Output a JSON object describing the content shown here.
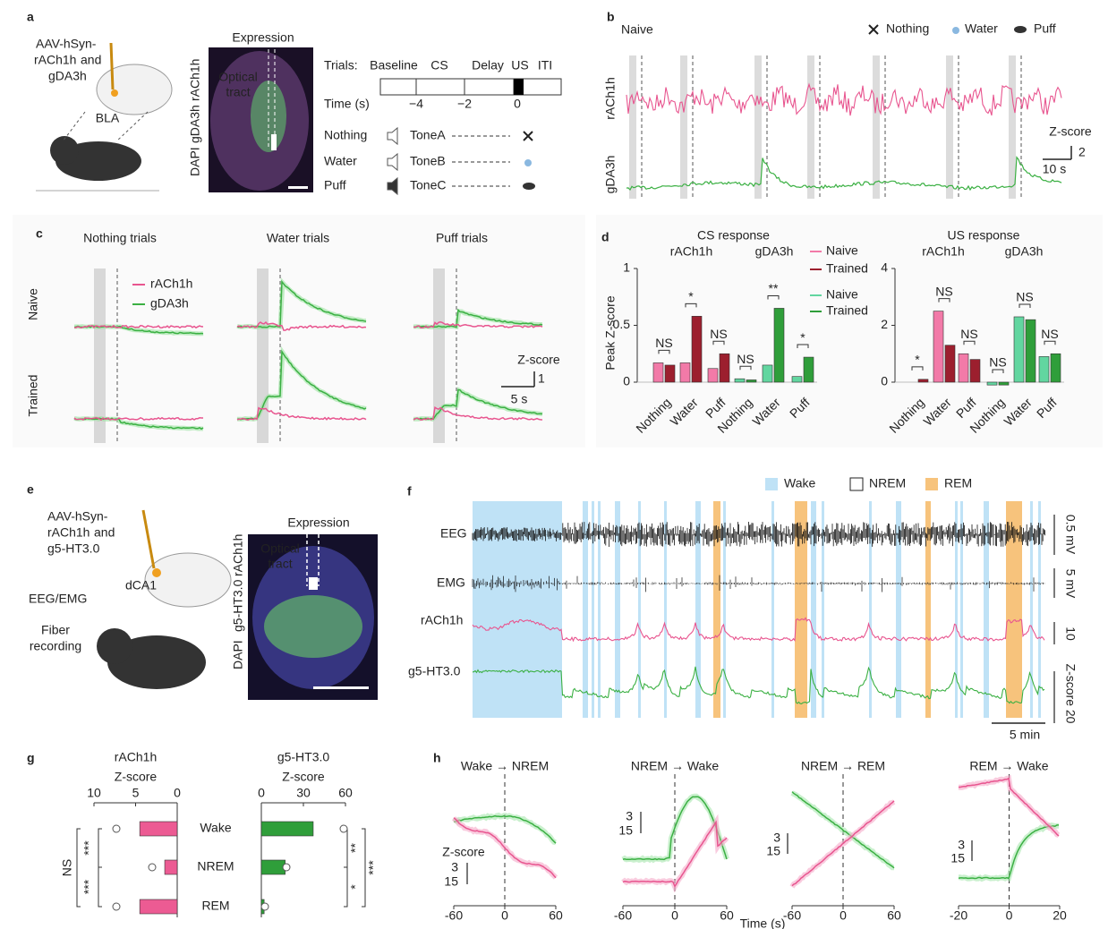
{
  "a": {
    "label": "a",
    "construct": {
      "prefix": "AAV-hSyn-",
      "sensor1": "rACh1h",
      "and": "and",
      "sensor2": "gDA3h"
    },
    "region": "BLA",
    "image": {
      "title": "Expression",
      "tract": [
        "Optical",
        "tract"
      ],
      "stain": [
        "DAPI",
        "gDA3h",
        "rACh1h"
      ]
    },
    "protocol": {
      "trials_label": "Trials:",
      "phases": [
        "Baseline",
        "CS",
        "Delay",
        "US",
        "ITI"
      ],
      "time_label": "Time (s)",
      "time_ticks": [
        "−4",
        "−2",
        "0"
      ],
      "rows": [
        {
          "name": "Nothing",
          "tone": "ToneA"
        },
        {
          "name": "Water",
          "tone": "ToneB"
        },
        {
          "name": "Puff",
          "tone": "ToneC"
        }
      ]
    }
  },
  "b": {
    "label": "b",
    "condition": "Naive",
    "legend": [
      "Nothing",
      "Water",
      "Puff"
    ],
    "traces": [
      "rACh1h",
      "gDA3h"
    ],
    "scale_title": "Z-score",
    "scale_y": "2",
    "scale_x": "10 s"
  },
  "c": {
    "label": "c",
    "columns": [
      "Nothing trials",
      "Water trials",
      "Puff trials"
    ],
    "legend": [
      "rACh1h",
      "gDA3h"
    ],
    "rows": [
      "Naive",
      "Trained"
    ],
    "scale_title": "Z-score",
    "scale_y": "1",
    "scale_x": "5 s"
  },
  "d": {
    "label": "d",
    "y_label": "Peak Z-score",
    "categories": [
      "Nothing",
      "Water",
      "Puff"
    ],
    "legend": [
      {
        "name": "Naive",
        "color": "#f27aa8"
      },
      {
        "name": "Trained",
        "color": "#9c1f2e"
      },
      {
        "name": "Naive",
        "color": "#62d6a0"
      },
      {
        "name": "Trained",
        "color": "#2f9e3a"
      }
    ],
    "charts": [
      {
        "title": "CS response",
        "ylim": [
          0,
          1
        ],
        "yticks": [
          0,
          0.5,
          1
        ],
        "groups": [
          {
            "name": "rACh1h",
            "naive": [
              0.17,
              0.17,
              0.12
            ],
            "trained": [
              0.15,
              0.58,
              0.25
            ],
            "sig": [
              "NS",
              "*",
              "NS"
            ]
          },
          {
            "name": "gDA3h",
            "naive": [
              0.03,
              0.15,
              0.05
            ],
            "trained": [
              0.02,
              0.65,
              0.22
            ],
            "sig": [
              "NS",
              "**",
              "*"
            ]
          }
        ]
      },
      {
        "title": "US response",
        "ylim": [
          0,
          4
        ],
        "yticks": [
          0,
          2,
          4
        ],
        "groups": [
          {
            "name": "rACh1h",
            "naive": [
              0.0,
              2.5,
              1.0
            ],
            "trained": [
              0.1,
              1.3,
              0.8
            ],
            "sig": [
              "*",
              "NS",
              "NS"
            ]
          },
          {
            "name": "gDA3h",
            "naive": [
              -0.1,
              2.3,
              0.9
            ],
            "trained": [
              -0.1,
              2.2,
              1.0
            ],
            "sig": [
              "NS",
              "NS",
              "NS"
            ]
          }
        ]
      }
    ]
  },
  "e": {
    "label": "e",
    "construct": {
      "prefix": "AAV-hSyn-",
      "sensor1": "rACh1h",
      "and": "and",
      "sensor2": "g5-HT3.0"
    },
    "region": "dCA1",
    "eeg": "EEG/EMG",
    "fiber": [
      "Fiber",
      "recording"
    ],
    "image": {
      "title": "Expression",
      "tract": [
        "Optical",
        "tract"
      ],
      "stain": [
        "DAPI",
        "g5-HT3.0",
        "rACh1h"
      ]
    }
  },
  "f": {
    "label": "f",
    "legend": [
      {
        "name": "Wake",
        "color": "#bfe2f6"
      },
      {
        "name": "NREM",
        "color": "#ffffff"
      },
      {
        "name": "REM",
        "color": "#f7c37c"
      }
    ],
    "traces": [
      "EEG",
      "EMG",
      "rACh1h",
      "g5-HT3.0"
    ],
    "scales": [
      "0.5 mV",
      "5 mV",
      "10",
      "Z-score 20"
    ],
    "scale_x": "5 min"
  },
  "g": {
    "label": "g",
    "categories": [
      "Wake",
      "NREM",
      "REM"
    ],
    "charts": [
      {
        "title": "rACh1h",
        "x_label": "Z-score",
        "xlim": [
          10,
          0
        ],
        "xticks": [
          10,
          5,
          0
        ],
        "values": [
          4.5,
          1.5,
          4.5
        ],
        "color": "#ec5b93",
        "sig": [
          "***",
          "***",
          "NS"
        ]
      },
      {
        "title": "g5-HT3.0",
        "x_label": "Z-score",
        "xlim": [
          0,
          60
        ],
        "xticks": [
          0,
          30,
          60
        ],
        "values": [
          37,
          17,
          2
        ],
        "color": "#2f9e3a",
        "sig": [
          "**",
          "*",
          "***"
        ]
      }
    ]
  },
  "h": {
    "label": "h",
    "z_label": "Z-score",
    "scale": [
      "3",
      "15"
    ],
    "x_label": "Time (s)",
    "panels": [
      {
        "title": "Wake → NREM",
        "xlim": [
          -60,
          60
        ],
        "xticks": [
          -60,
          0,
          60
        ]
      },
      {
        "title": "NREM → Wake",
        "xlim": [
          -60,
          60
        ],
        "xticks": [
          -60,
          0,
          60
        ]
      },
      {
        "title": "NREM → REM",
        "xlim": [
          -60,
          60
        ],
        "xticks": [
          -60,
          0,
          60
        ]
      },
      {
        "title": "REM → Wake",
        "xlim": [
          -20,
          20
        ],
        "xticks": [
          -20,
          0,
          20
        ]
      }
    ]
  }
}
